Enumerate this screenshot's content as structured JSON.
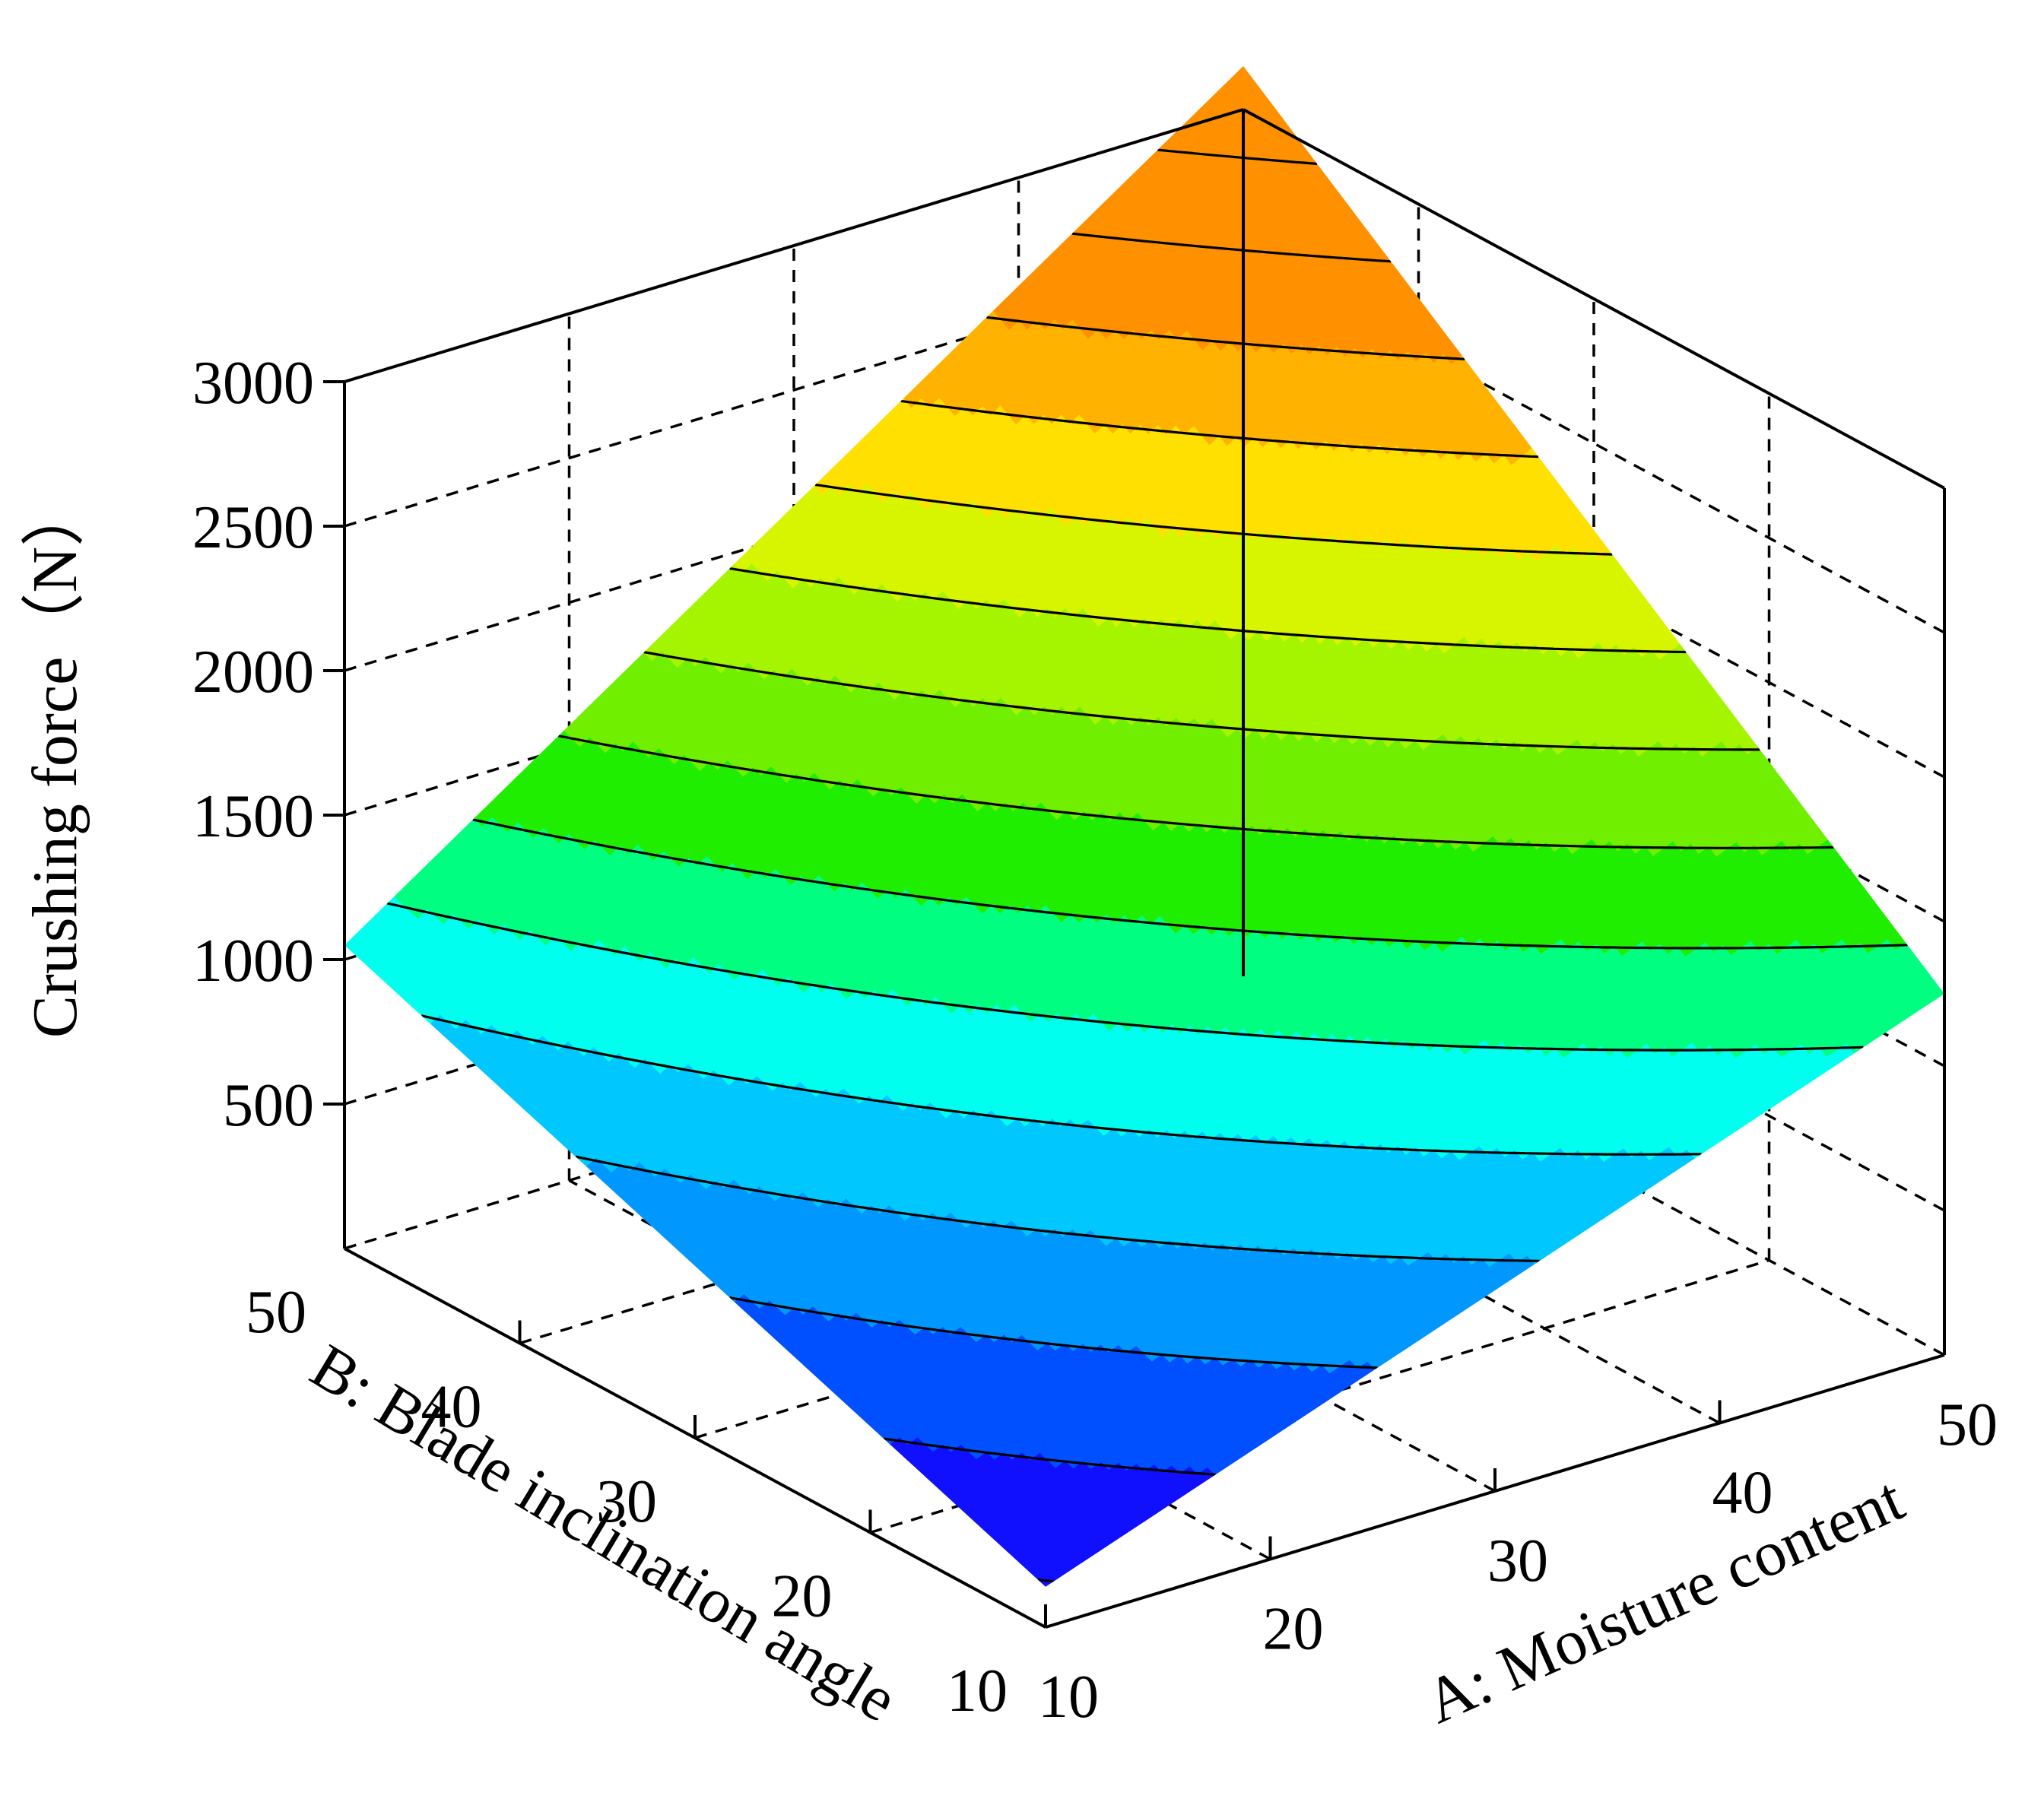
{
  "chart_data": {
    "type": "surface3d",
    "title": "",
    "zlabel": "Crushing force（N）",
    "xlabel": "A: Moisture content",
    "ylabel": "B: Blade inclination angle",
    "x_ticks": [
      "10",
      "20",
      "30",
      "40",
      "50"
    ],
    "y_ticks": [
      "10",
      "20",
      "30",
      "40",
      "50"
    ],
    "z_ticks": [
      "500",
      "1000",
      "1500",
      "2000",
      "2500",
      "3000"
    ],
    "xlim": [
      10,
      50
    ],
    "ylim": [
      10,
      50
    ],
    "zlim": [
      0,
      3000
    ],
    "grid": true,
    "colormap": [
      "#6a00ff",
      "#1010ff",
      "#0050ff",
      "#0098ff",
      "#00c8ff",
      "#00ffee",
      "#00ff80",
      "#20ee00",
      "#70f000",
      "#a6f500",
      "#d8f500",
      "#ffe000",
      "#ffb200",
      "#ff9000"
    ],
    "surface": {
      "corners": {
        "x10_y10": 140,
        "x50_y10": 1250,
        "x10_y50": 1050,
        "x50_y50": 3150
      },
      "contour_levels": [
        150,
        350,
        550,
        750,
        950,
        1150,
        1350,
        1550,
        1750,
        1950,
        2150,
        2350,
        2550,
        2750,
        2950
      ]
    }
  }
}
